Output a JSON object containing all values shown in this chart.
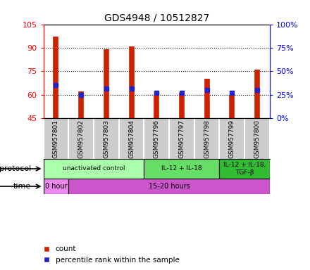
{
  "title": "GDS4948 / 10512827",
  "samples": [
    "GSM957801",
    "GSM957802",
    "GSM957803",
    "GSM957804",
    "GSM957796",
    "GSM957797",
    "GSM957798",
    "GSM957799",
    "GSM957800"
  ],
  "bar_tops": [
    97,
    62,
    89,
    91,
    60,
    61,
    70,
    60,
    76
  ],
  "bar_bottoms": [
    45,
    45,
    45,
    45,
    45,
    45,
    45,
    45,
    45
  ],
  "blue_marks": [
    66,
    60,
    64,
    64,
    61,
    61,
    63,
    61,
    63
  ],
  "ylim": [
    45,
    105
  ],
  "yticks_left": [
    45,
    60,
    75,
    90,
    105
  ],
  "yticks_right": [
    0,
    25,
    50,
    75,
    100
  ],
  "bar_color": "#cc2200",
  "blue_color": "#2222cc",
  "bg_color": "#ffffff",
  "plot_bg": "#ffffff",
  "grid_color": "#000000",
  "sample_bg": "#cccccc",
  "protocol_groups": [
    {
      "label": "unactivated control",
      "start": 0,
      "end": 4,
      "color": "#aaffaa"
    },
    {
      "label": "IL-12 + IL-18",
      "start": 4,
      "end": 7,
      "color": "#66dd66"
    },
    {
      "label": "IL-12 + IL-18,\nTGF-β",
      "start": 7,
      "end": 9,
      "color": "#33bb33"
    }
  ],
  "time_groups": [
    {
      "label": "0 hour",
      "start": 0,
      "end": 1,
      "color": "#ee88ee"
    },
    {
      "label": "15-20 hours",
      "start": 1,
      "end": 9,
      "color": "#cc55cc"
    }
  ],
  "legend_count_label": "count",
  "legend_pct_label": "percentile rank within the sample",
  "xlabel_protocol": "protocol",
  "xlabel_time": "time"
}
